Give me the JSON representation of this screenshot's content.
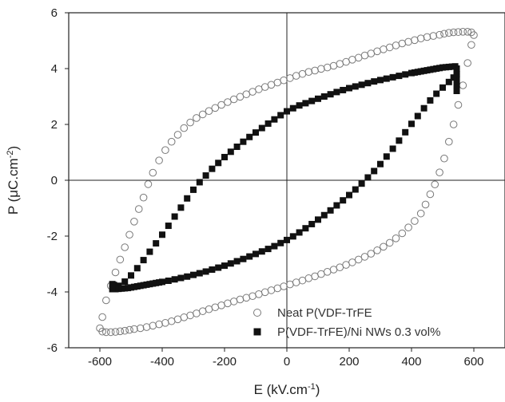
{
  "chart_data": {
    "type": "scatter",
    "xlabel": "E (kV.cm",
    "xlabel_sup": "-1",
    "xlabel_end": ")",
    "ylabel": "P (μC.cm",
    "ylabel_sup": "-2",
    "ylabel_end": ")",
    "xlim": [
      -700,
      700
    ],
    "ylim": [
      -6,
      6
    ],
    "xticks": [
      -600,
      -400,
      -200,
      0,
      200,
      400,
      600
    ],
    "yticks": [
      -6,
      -4,
      -2,
      0,
      2,
      4,
      6
    ],
    "grid": false,
    "zero_lines": true,
    "legend_position": "bottom-right",
    "series": [
      {
        "name": "Neat P(VDF-TrFE",
        "marker": "open-circle",
        "color": "#7a7a7a",
        "x": [
          600,
          592,
          580,
          565,
          550,
          535,
          520,
          505,
          490,
          470,
          450,
          430,
          410,
          390,
          370,
          350,
          330,
          310,
          290,
          270,
          250,
          230,
          210,
          190,
          170,
          150,
          130,
          110,
          90,
          70,
          50,
          30,
          10,
          -10,
          -30,
          -50,
          -70,
          -90,
          -110,
          -130,
          -150,
          -170,
          -190,
          -210,
          -230,
          -250,
          -270,
          -290,
          -310,
          -330,
          -350,
          -370,
          -390,
          -410,
          -430,
          -445,
          -460,
          -475,
          -490,
          -505,
          -520,
          -535,
          -550,
          -565,
          -580,
          -592,
          -600,
          -592,
          -580,
          -565,
          -550,
          -535,
          -520,
          -505,
          -490,
          -470,
          -450,
          -430,
          -410,
          -390,
          -370,
          -350,
          -330,
          -310,
          -290,
          -270,
          -250,
          -230,
          -210,
          -190,
          -170,
          -150,
          -130,
          -110,
          -90,
          -70,
          -50,
          -30,
          -10,
          10,
          30,
          50,
          70,
          90,
          110,
          130,
          150,
          170,
          190,
          210,
          230,
          250,
          270,
          290,
          310,
          330,
          350,
          370,
          390,
          410,
          430,
          445,
          460,
          475,
          490,
          505,
          520,
          535,
          550,
          565,
          580,
          592
        ],
        "y": [
          5.2,
          5.3,
          5.32,
          5.32,
          5.31,
          5.3,
          5.28,
          5.25,
          5.21,
          5.17,
          5.13,
          5.08,
          5.02,
          4.96,
          4.9,
          4.83,
          4.76,
          4.69,
          4.62,
          4.54,
          4.47,
          4.39,
          4.32,
          4.24,
          4.17,
          4.1,
          4.04,
          3.99,
          3.93,
          3.88,
          3.81,
          3.74,
          3.66,
          3.58,
          3.5,
          3.42,
          3.34,
          3.26,
          3.17,
          3.08,
          2.99,
          2.9,
          2.8,
          2.7,
          2.59,
          2.48,
          2.36,
          2.23,
          2.07,
          1.87,
          1.63,
          1.38,
          1.08,
          0.71,
          0.27,
          -0.14,
          -0.62,
          -1.03,
          -1.48,
          -1.95,
          -2.4,
          -2.84,
          -3.3,
          -3.78,
          -4.3,
          -4.9,
          -5.3,
          -5.42,
          -5.44,
          -5.44,
          -5.43,
          -5.41,
          -5.39,
          -5.36,
          -5.33,
          -5.3,
          -5.26,
          -5.21,
          -5.16,
          -5.11,
          -5.05,
          -4.98,
          -4.91,
          -4.84,
          -4.77,
          -4.69,
          -4.62,
          -4.55,
          -4.48,
          -4.41,
          -4.34,
          -4.27,
          -4.21,
          -4.15,
          -4.08,
          -4.01,
          -3.94,
          -3.87,
          -3.8,
          -3.73,
          -3.66,
          -3.59,
          -3.51,
          -3.44,
          -3.36,
          -3.28,
          -3.2,
          -3.12,
          -3.03,
          -2.94,
          -2.84,
          -2.74,
          -2.63,
          -2.51,
          -2.38,
          -2.24,
          -2.08,
          -1.9,
          -1.69,
          -1.46,
          -1.19,
          -0.87,
          -0.5,
          -0.15,
          0.28,
          0.78,
          1.38,
          2.0,
          2.7,
          3.4,
          4.2,
          4.85
        ]
      },
      {
        "name": "P(VDF-TrFE)/Ni NWs 0.3 vol%",
        "marker": "filled-square",
        "color": "#111111",
        "x": [
          545,
          545,
          545,
          545,
          545,
          540,
          530,
          520,
          510,
          500,
          490,
          480,
          470,
          460,
          450,
          440,
          430,
          420,
          410,
          400,
          380,
          360,
          340,
          320,
          300,
          280,
          260,
          240,
          220,
          200,
          180,
          160,
          140,
          120,
          100,
          80,
          60,
          40,
          20,
          0,
          -20,
          -40,
          -60,
          -80,
          -100,
          -120,
          -140,
          -160,
          -180,
          -200,
          -220,
          -240,
          -260,
          -280,
          -300,
          -320,
          -340,
          -360,
          -380,
          -400,
          -420,
          -440,
          -460,
          -480,
          -500,
          -520,
          -540,
          -555,
          -560,
          -560,
          -555,
          -550,
          -540,
          -530,
          -520,
          -510,
          -500,
          -490,
          -480,
          -470,
          -460,
          -450,
          -440,
          -430,
          -420,
          -410,
          -400,
          -380,
          -360,
          -340,
          -320,
          -300,
          -280,
          -260,
          -240,
          -220,
          -200,
          -180,
          -160,
          -140,
          -120,
          -100,
          -80,
          -60,
          -40,
          -20,
          0,
          20,
          40,
          60,
          80,
          100,
          120,
          140,
          160,
          180,
          200,
          220,
          240,
          260,
          280,
          300,
          320,
          340,
          360,
          380,
          400,
          420,
          440,
          460,
          480,
          500,
          520,
          535,
          545
        ],
        "y": [
          4.0,
          3.8,
          3.6,
          3.4,
          3.2,
          4.08,
          4.07,
          4.06,
          4.05,
          4.04,
          4.02,
          4.0,
          3.98,
          3.96,
          3.94,
          3.92,
          3.9,
          3.88,
          3.86,
          3.84,
          3.79,
          3.74,
          3.69,
          3.64,
          3.59,
          3.54,
          3.48,
          3.42,
          3.36,
          3.3,
          3.23,
          3.16,
          3.08,
          3.0,
          2.92,
          2.84,
          2.76,
          2.68,
          2.58,
          2.47,
          2.33,
          2.18,
          2.03,
          1.87,
          1.71,
          1.55,
          1.38,
          1.2,
          1.02,
          0.83,
          0.62,
          0.41,
          0.17,
          -0.07,
          -0.34,
          -0.65,
          -0.98,
          -1.3,
          -1.63,
          -1.95,
          -2.26,
          -2.56,
          -2.86,
          -3.15,
          -3.41,
          -3.63,
          -3.78,
          -3.75,
          -3.72,
          -3.9,
          -3.9,
          -3.9,
          -3.89,
          -3.88,
          -3.87,
          -3.86,
          -3.84,
          -3.82,
          -3.8,
          -3.78,
          -3.76,
          -3.74,
          -3.72,
          -3.7,
          -3.68,
          -3.66,
          -3.64,
          -3.6,
          -3.55,
          -3.5,
          -3.45,
          -3.39,
          -3.33,
          -3.27,
          -3.2,
          -3.13,
          -3.06,
          -2.98,
          -2.9,
          -2.82,
          -2.73,
          -2.64,
          -2.55,
          -2.46,
          -2.36,
          -2.25,
          -2.14,
          -2.01,
          -1.87,
          -1.72,
          -1.57,
          -1.41,
          -1.25,
          -1.08,
          -0.9,
          -0.72,
          -0.53,
          -0.33,
          -0.12,
          0.1,
          0.33,
          0.58,
          0.85,
          1.13,
          1.42,
          1.72,
          2.02,
          2.3,
          2.58,
          2.86,
          3.1,
          3.32,
          3.52,
          3.68,
          3.8
        ]
      }
    ]
  }
}
